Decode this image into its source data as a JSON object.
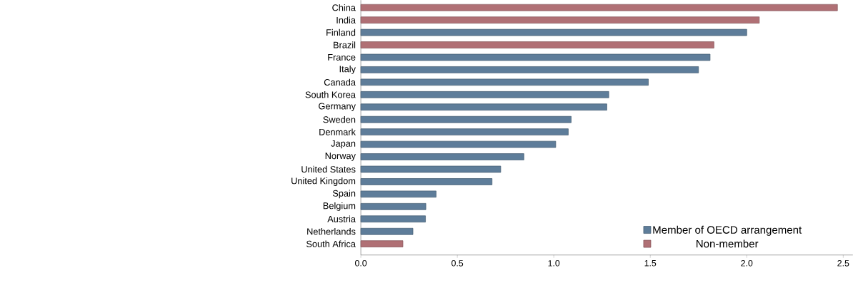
{
  "chart_data": {
    "type": "bar",
    "orientation": "horizontal",
    "categories": [
      "China",
      "India",
      "Finland",
      "Brazil",
      "France",
      "Italy",
      "Canada",
      "South Korea",
      "Germany",
      "Sweden",
      "Denmark",
      "Japan",
      "Norway",
      "United States",
      "United Kingdom",
      "Spain",
      "Belgium",
      "Austria",
      "Netherlands",
      "South Africa"
    ],
    "series": [
      {
        "name": "Member of OECD arrangement",
        "color": "#5e7d9a",
        "values": [
          null,
          null,
          2.0,
          null,
          1.81,
          1.75,
          1.49,
          1.285,
          1.275,
          1.09,
          1.075,
          1.01,
          0.845,
          0.725,
          0.68,
          0.39,
          0.337,
          0.335,
          0.27,
          null
        ]
      },
      {
        "name": "Non-member",
        "color": "#b07075",
        "values": [
          2.47,
          2.065,
          null,
          1.83,
          null,
          null,
          null,
          null,
          null,
          null,
          null,
          null,
          null,
          null,
          null,
          null,
          null,
          null,
          null,
          0.218
        ]
      }
    ],
    "xlim": [
      0,
      2.55
    ],
    "xticks": [
      {
        "value": 0,
        "label": "0.0"
      },
      0.5,
      {
        "value": 1,
        "label": "1.0"
      },
      1.5,
      {
        "value": 2,
        "label": "2.0"
      },
      2.5
    ],
    "grid": false,
    "legend": "bottom right"
  }
}
